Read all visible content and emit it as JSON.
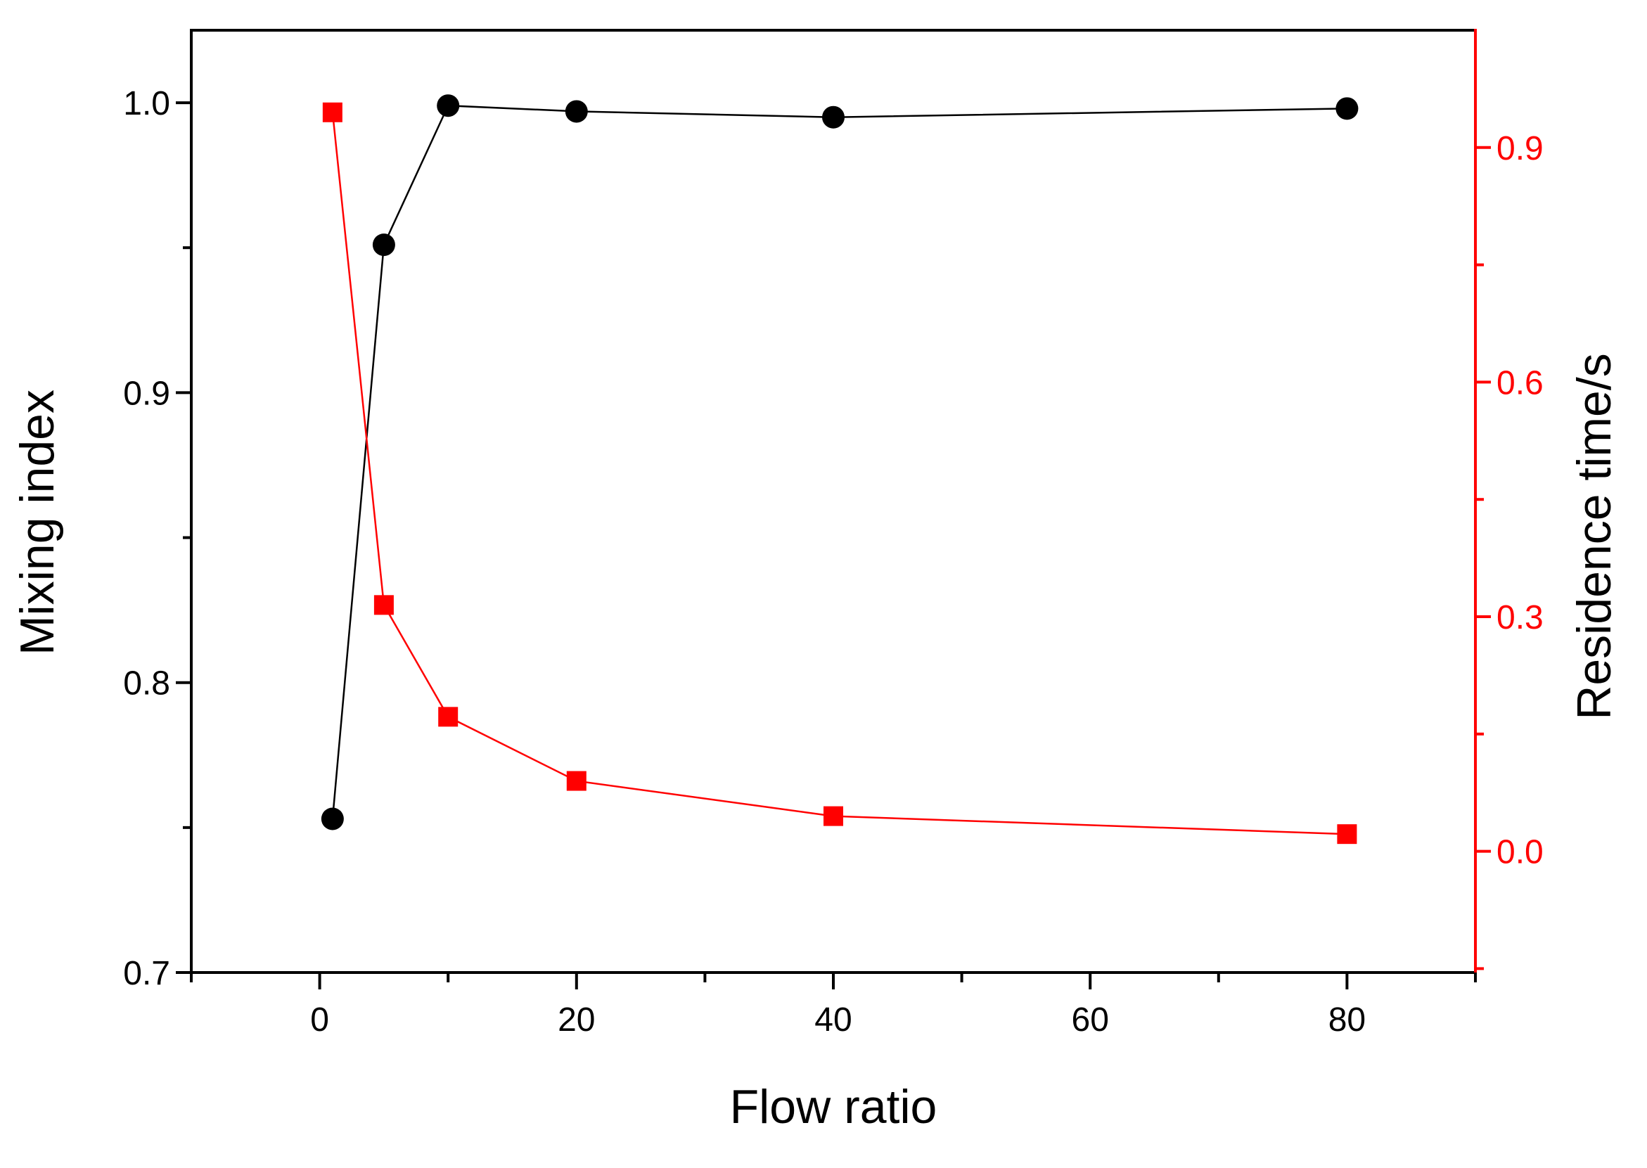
{
  "chart_data": {
    "type": "line",
    "title": "",
    "xlabel": "Flow ratio",
    "ylabel_left": "Mixing index",
    "ylabel_right": "Residence time/s",
    "xlim": [
      -10,
      90
    ],
    "ylim_left": [
      0.7,
      1.025
    ],
    "ylim_right": [
      -0.155,
      1.05
    ],
    "x_ticks": [
      0,
      20,
      40,
      60,
      80
    ],
    "x_minor_ticks": [
      -10,
      10,
      30,
      50,
      70,
      90
    ],
    "y_left_ticks": [
      0.7,
      0.8,
      0.9,
      1.0
    ],
    "y_left_tick_labels": [
      "0.7",
      "0.8",
      "0.9",
      "1.0"
    ],
    "y_left_minor_ticks": [
      0.75,
      0.85,
      0.95
    ],
    "y_right_ticks": [
      0.0,
      0.3,
      0.6,
      0.9
    ],
    "y_right_tick_labels": [
      "0.0",
      "0.3",
      "0.6",
      "0.9"
    ],
    "y_right_minor_ticks": [
      -0.15,
      0.15,
      0.45,
      0.75
    ],
    "grid": false,
    "legend": "none",
    "series": [
      {
        "axis": "left",
        "marker": "circle",
        "color": "#000000",
        "x": [
          1,
          5,
          10,
          20,
          40,
          80
        ],
        "y": [
          0.753,
          0.951,
          0.999,
          0.997,
          0.995,
          0.998
        ]
      },
      {
        "axis": "right",
        "marker": "square",
        "color": "#ff0000",
        "x": [
          1,
          5,
          10,
          20,
          40,
          80
        ],
        "y": [
          0.945,
          0.315,
          0.172,
          0.09,
          0.045,
          0.022
        ]
      }
    ]
  }
}
